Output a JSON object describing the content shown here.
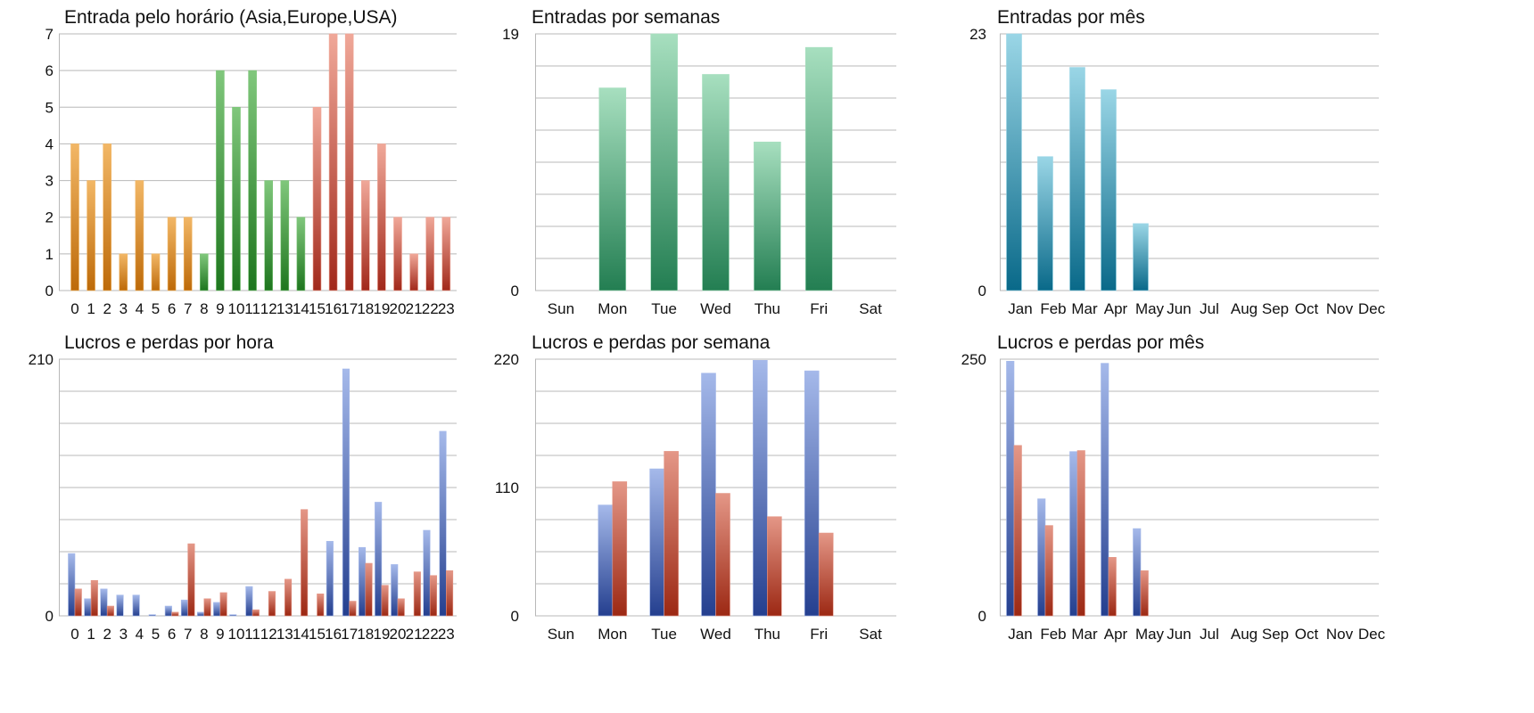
{
  "gradients": {
    "orange": [
      "#f2b766",
      "#bd6a09"
    ],
    "green": [
      "#80c77c",
      "#1e761e"
    ],
    "red": [
      "#f0a899",
      "#a1281a"
    ],
    "teal": [
      "#a7dfbf",
      "#237e52"
    ],
    "cyan": [
      "#9ad6e6",
      "#096989"
    ],
    "blue": [
      "#a5b9ea",
      "#243f8f"
    ],
    "loss": [
      "#e49787",
      "#9c2813"
    ]
  },
  "chart_data": [
    {
      "id": "entradas-hora",
      "type": "bar",
      "title": "Entrada pelo horário (Asia,Europe,USA)",
      "categories": [
        "0",
        "1",
        "2",
        "3",
        "4",
        "5",
        "6",
        "7",
        "8",
        "9",
        "10",
        "11",
        "12",
        "13",
        "14",
        "15",
        "16",
        "17",
        "18",
        "19",
        "20",
        "21",
        "22",
        "23"
      ],
      "values": [
        4,
        3,
        4,
        1,
        3,
        1,
        2,
        2,
        1,
        6,
        5,
        6,
        3,
        3,
        2,
        5,
        7,
        7,
        3,
        4,
        2,
        1,
        2,
        2
      ],
      "colors": [
        "orange",
        "orange",
        "orange",
        "orange",
        "orange",
        "orange",
        "orange",
        "orange",
        "green",
        "green",
        "green",
        "green",
        "green",
        "green",
        "green",
        "red",
        "red",
        "red",
        "red",
        "red",
        "red",
        "red",
        "red",
        "red"
      ],
      "ylim": [
        0,
        7
      ],
      "yticks": [
        "0",
        "1",
        "2",
        "3",
        "4",
        "5",
        "6",
        "7"
      ],
      "grid": true
    },
    {
      "id": "entradas-semana",
      "type": "bar",
      "title": "Entradas por semanas",
      "categories": [
        "Sun",
        "Mon",
        "Tue",
        "Wed",
        "Thu",
        "Fri",
        "Sat"
      ],
      "values": [
        0,
        15,
        19,
        16,
        11,
        18,
        0
      ],
      "color": "teal",
      "ylim": [
        0,
        19
      ],
      "yticks": [
        "0",
        "19"
      ],
      "grid": true
    },
    {
      "id": "entradas-mes",
      "type": "bar",
      "title": "Entradas por mês",
      "categories": [
        "Jan",
        "Feb",
        "Mar",
        "Apr",
        "May",
        "Jun",
        "Jul",
        "Aug",
        "Sep",
        "Oct",
        "Nov",
        "Dec"
      ],
      "values": [
        23,
        12,
        20,
        18,
        6,
        0,
        0,
        0,
        0,
        0,
        0,
        0
      ],
      "color": "cyan",
      "ylim": [
        0,
        23
      ],
      "yticks": [
        "0",
        "23"
      ],
      "grid": true
    },
    {
      "id": "lucros-hora",
      "type": "bar",
      "title": "Lucros e perdas por hora",
      "categories": [
        "0",
        "1",
        "2",
        "3",
        "4",
        "5",
        "6",
        "7",
        "8",
        "9",
        "10",
        "11",
        "12",
        "13",
        "14",
        "15",
        "16",
        "17",
        "18",
        "19",
        "20",
        "21",
        "22",
        "23"
      ],
      "series": [
        {
          "color": "blue",
          "values": [
            51,
            14,
            22,
            17,
            17,
            1,
            8,
            13,
            3,
            11,
            1,
            24,
            0,
            0,
            0,
            0,
            61,
            202,
            56,
            93,
            42,
            0,
            70,
            151
          ]
        },
        {
          "color": "loss",
          "values": [
            22,
            29,
            8,
            0,
            0,
            0,
            3,
            59,
            14,
            19,
            0,
            5,
            20,
            30,
            87,
            18,
            0,
            12,
            43,
            25,
            14,
            36,
            33,
            37
          ]
        }
      ],
      "ylim": [
        0,
        210
      ],
      "yticks": [
        "0",
        "210"
      ],
      "grid": true
    },
    {
      "id": "lucros-semana",
      "type": "bar",
      "title": "Lucros e perdas por semana",
      "categories": [
        "Sun",
        "Mon",
        "Tue",
        "Wed",
        "Thu",
        "Fri",
        "Sat"
      ],
      "series": [
        {
          "color": "blue",
          "values": [
            0,
            95,
            126,
            208,
            219,
            210,
            0
          ]
        },
        {
          "color": "loss",
          "values": [
            0,
            115,
            141,
            105,
            85,
            71,
            0
          ]
        }
      ],
      "ylim": [
        0,
        220
      ],
      "yticks": [
        "0",
        "110",
        "220"
      ],
      "grid": true
    },
    {
      "id": "lucros-mes",
      "type": "bar",
      "title": "Lucros e perdas por mês",
      "categories": [
        "Jan",
        "Feb",
        "Mar",
        "Apr",
        "May",
        "Jun",
        "Jul",
        "Aug",
        "Sep",
        "Oct",
        "Nov",
        "Dec"
      ],
      "series": [
        {
          "color": "blue",
          "values": [
            248,
            114,
            160,
            246,
            85,
            0,
            0,
            0,
            0,
            0,
            0,
            0
          ]
        },
        {
          "color": "loss",
          "values": [
            166,
            88,
            161,
            57,
            44,
            0,
            0,
            0,
            0,
            0,
            0,
            0
          ]
        }
      ],
      "ylim": [
        0,
        250
      ],
      "yticks": [
        "0",
        "250"
      ],
      "grid": true
    }
  ]
}
